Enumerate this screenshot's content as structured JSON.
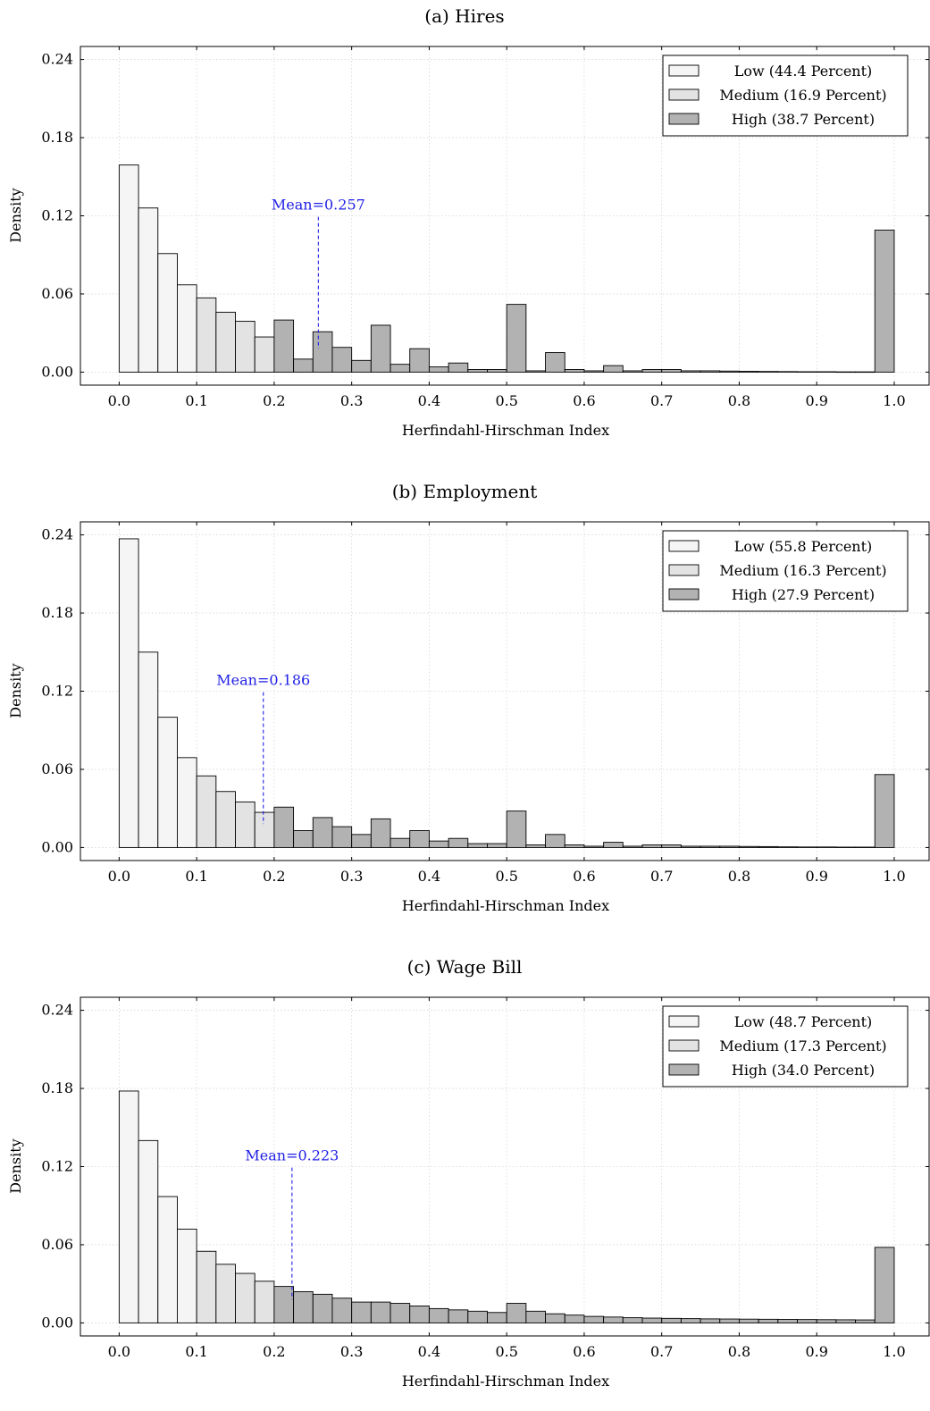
{
  "chart_data": [
    {
      "type": "bar",
      "title": "(a) Hires",
      "xlabel": "Herfindahl-Hirschman Index",
      "ylabel": "Density",
      "xlim": [
        -0.05,
        1.045
      ],
      "ylim": [
        -0.01,
        0.25
      ],
      "xticks": [
        "0.0",
        "0.1",
        "0.2",
        "0.3",
        "0.4",
        "0.5",
        "0.6",
        "0.7",
        "0.8",
        "0.9",
        "1.0"
      ],
      "yticks": [
        "0.00",
        "0.06",
        "0.12",
        "0.18",
        "0.24"
      ],
      "grid": true,
      "legend_position": "top-right",
      "bin_width": 0.025,
      "bin_start": 0.0,
      "series": [
        {
          "name": "Low (44.4 Percent)",
          "color": "#f5f5f5",
          "bin_range": [
            0,
            4
          ]
        },
        {
          "name": "Medium (16.9 Percent)",
          "color": "#e3e3e3",
          "bin_range": [
            4,
            8
          ]
        },
        {
          "name": "High (38.7 Percent)",
          "color": "#b2b2b2",
          "bin_range": [
            8,
            40
          ]
        }
      ],
      "values": [
        0.159,
        0.126,
        0.091,
        0.067,
        0.057,
        0.046,
        0.039,
        0.027,
        0.04,
        0.01,
        0.031,
        0.019,
        0.009,
        0.036,
        0.006,
        0.018,
        0.004,
        0.007,
        0.002,
        0.002,
        0.052,
        0.001,
        0.015,
        0.002,
        0.001,
        0.005,
        0.001,
        0.002,
        0.002,
        0.001,
        0.001,
        0.0008,
        0.0006,
        0.0005,
        0.0004,
        0.0003,
        0.0003,
        0.0002,
        0.0002,
        0.109
      ],
      "mean": {
        "value": 0.257,
        "label": "Mean=0.257",
        "label_y": 0.122
      }
    },
    {
      "type": "bar",
      "title": "(b) Employment",
      "xlabel": "Herfindahl-Hirschman Index",
      "ylabel": "Density",
      "xlim": [
        -0.05,
        1.045
      ],
      "ylim": [
        -0.01,
        0.25
      ],
      "xticks": [
        "0.0",
        "0.1",
        "0.2",
        "0.3",
        "0.4",
        "0.5",
        "0.6",
        "0.7",
        "0.8",
        "0.9",
        "1.0"
      ],
      "yticks": [
        "0.00",
        "0.06",
        "0.12",
        "0.18",
        "0.24"
      ],
      "grid": true,
      "legend_position": "top-right",
      "bin_width": 0.025,
      "bin_start": 0.0,
      "series": [
        {
          "name": "Low (55.8 Percent)",
          "color": "#f5f5f5",
          "bin_range": [
            0,
            4
          ]
        },
        {
          "name": "Medium (16.3 Percent)",
          "color": "#e3e3e3",
          "bin_range": [
            4,
            8
          ]
        },
        {
          "name": "High (27.9 Percent)",
          "color": "#b2b2b2",
          "bin_range": [
            8,
            40
          ]
        }
      ],
      "values": [
        0.237,
        0.15,
        0.1,
        0.069,
        0.055,
        0.043,
        0.035,
        0.027,
        0.031,
        0.013,
        0.023,
        0.016,
        0.01,
        0.022,
        0.007,
        0.013,
        0.005,
        0.007,
        0.003,
        0.003,
        0.028,
        0.002,
        0.01,
        0.002,
        0.001,
        0.004,
        0.001,
        0.002,
        0.002,
        0.001,
        0.001,
        0.001,
        0.0008,
        0.0007,
        0.0005,
        0.0004,
        0.0004,
        0.0003,
        0.0003,
        0.056
      ],
      "mean": {
        "value": 0.186,
        "label": "Mean=0.186",
        "label_y": 0.122
      }
    },
    {
      "type": "bar",
      "title": "(c) Wage Bill",
      "xlabel": "Herfindahl-Hirschman Index",
      "ylabel": "Density",
      "xlim": [
        -0.05,
        1.045
      ],
      "ylim": [
        -0.01,
        0.25
      ],
      "xticks": [
        "0.0",
        "0.1",
        "0.2",
        "0.3",
        "0.4",
        "0.5",
        "0.6",
        "0.7",
        "0.8",
        "0.9",
        "1.0"
      ],
      "yticks": [
        "0.00",
        "0.06",
        "0.12",
        "0.18",
        "0.24"
      ],
      "grid": true,
      "legend_position": "top-right",
      "bin_width": 0.025,
      "bin_start": 0.0,
      "series": [
        {
          "name": "Low (48.7 Percent)",
          "color": "#f5f5f5",
          "bin_range": [
            0,
            4
          ]
        },
        {
          "name": "Medium (17.3 Percent)",
          "color": "#e3e3e3",
          "bin_range": [
            4,
            8
          ]
        },
        {
          "name": "High (34.0 Percent)",
          "color": "#b2b2b2",
          "bin_range": [
            8,
            40
          ]
        }
      ],
      "values": [
        0.178,
        0.14,
        0.097,
        0.072,
        0.055,
        0.045,
        0.038,
        0.032,
        0.028,
        0.024,
        0.022,
        0.019,
        0.016,
        0.016,
        0.015,
        0.013,
        0.011,
        0.01,
        0.009,
        0.008,
        0.015,
        0.009,
        0.007,
        0.006,
        0.005,
        0.0045,
        0.004,
        0.0037,
        0.0035,
        0.0033,
        0.0031,
        0.003,
        0.0029,
        0.0028,
        0.0027,
        0.0026,
        0.0025,
        0.0024,
        0.0023,
        0.058
      ],
      "mean": {
        "value": 0.223,
        "label": "Mean=0.223",
        "label_y": 0.122
      }
    }
  ]
}
